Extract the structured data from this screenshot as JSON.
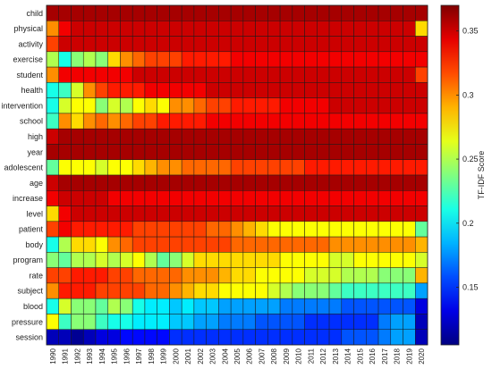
{
  "chart_data": {
    "type": "heatmap",
    "title": "",
    "xlabel": "",
    "ylabel": "",
    "colorbar_label": "TF-IDF Score",
    "colorbar_range": [
      0.105,
      0.37
    ],
    "colorbar_ticks": [
      0.15,
      0.2,
      0.25,
      0.3,
      0.35
    ],
    "colormap": "jet",
    "grid": true,
    "x": [
      "1990",
      "1991",
      "1992",
      "1993",
      "1994",
      "1995",
      "1996",
      "1997",
      "1998",
      "1999",
      "2000",
      "2001",
      "2002",
      "2003",
      "2004",
      "2005",
      "2006",
      "2007",
      "2008",
      "2009",
      "2010",
      "2011",
      "2012",
      "2013",
      "2014",
      "2015",
      "2016",
      "2017",
      "2018",
      "2019",
      "2020"
    ],
    "y": [
      "child",
      "physical",
      "activity",
      "exercise",
      "student",
      "health",
      "intervention",
      "school",
      "high",
      "year",
      "adolescent",
      "age",
      "increase",
      "level",
      "patient",
      "body",
      "program",
      "rate",
      "subject",
      "blood",
      "pressure",
      "session"
    ],
    "values": [
      [
        0.36,
        0.36,
        0.36,
        0.36,
        0.36,
        0.36,
        0.36,
        0.36,
        0.36,
        0.36,
        0.36,
        0.36,
        0.36,
        0.36,
        0.36,
        0.36,
        0.36,
        0.36,
        0.36,
        0.36,
        0.36,
        0.36,
        0.36,
        0.36,
        0.36,
        0.36,
        0.36,
        0.36,
        0.36,
        0.36,
        0.36
      ],
      [
        0.3,
        0.34,
        0.35,
        0.35,
        0.35,
        0.35,
        0.35,
        0.35,
        0.35,
        0.35,
        0.35,
        0.35,
        0.35,
        0.35,
        0.35,
        0.35,
        0.35,
        0.35,
        0.35,
        0.35,
        0.35,
        0.35,
        0.35,
        0.35,
        0.35,
        0.35,
        0.35,
        0.35,
        0.35,
        0.35,
        0.28
      ],
      [
        0.32,
        0.35,
        0.35,
        0.35,
        0.35,
        0.35,
        0.35,
        0.35,
        0.35,
        0.35,
        0.35,
        0.35,
        0.35,
        0.35,
        0.35,
        0.35,
        0.35,
        0.35,
        0.35,
        0.35,
        0.35,
        0.35,
        0.35,
        0.35,
        0.35,
        0.35,
        0.35,
        0.35,
        0.35,
        0.35,
        0.35
      ],
      [
        0.25,
        0.21,
        0.24,
        0.25,
        0.24,
        0.28,
        0.3,
        0.31,
        0.32,
        0.32,
        0.32,
        0.33,
        0.33,
        0.33,
        0.33,
        0.34,
        0.34,
        0.34,
        0.34,
        0.34,
        0.34,
        0.34,
        0.34,
        0.34,
        0.34,
        0.34,
        0.34,
        0.34,
        0.34,
        0.34,
        0.34
      ],
      [
        0.3,
        0.34,
        0.34,
        0.34,
        0.34,
        0.34,
        0.34,
        0.35,
        0.35,
        0.35,
        0.35,
        0.35,
        0.35,
        0.35,
        0.35,
        0.35,
        0.35,
        0.35,
        0.35,
        0.35,
        0.35,
        0.35,
        0.35,
        0.35,
        0.35,
        0.35,
        0.35,
        0.35,
        0.35,
        0.35,
        0.32
      ],
      [
        0.21,
        0.22,
        0.26,
        0.3,
        0.32,
        0.33,
        0.33,
        0.33,
        0.34,
        0.34,
        0.34,
        0.34,
        0.34,
        0.35,
        0.35,
        0.35,
        0.35,
        0.35,
        0.35,
        0.35,
        0.35,
        0.35,
        0.35,
        0.35,
        0.35,
        0.35,
        0.35,
        0.35,
        0.35,
        0.35,
        0.35
      ],
      [
        0.21,
        0.26,
        0.27,
        0.27,
        0.24,
        0.26,
        0.25,
        0.27,
        0.28,
        0.27,
        0.3,
        0.3,
        0.31,
        0.32,
        0.32,
        0.33,
        0.33,
        0.33,
        0.33,
        0.34,
        0.34,
        0.34,
        0.34,
        0.35,
        0.35,
        0.35,
        0.35,
        0.35,
        0.35,
        0.35,
        0.35
      ],
      [
        0.22,
        0.3,
        0.28,
        0.3,
        0.31,
        0.3,
        0.31,
        0.32,
        0.32,
        0.33,
        0.33,
        0.33,
        0.33,
        0.34,
        0.34,
        0.34,
        0.34,
        0.34,
        0.34,
        0.34,
        0.34,
        0.34,
        0.34,
        0.34,
        0.34,
        0.34,
        0.34,
        0.34,
        0.34,
        0.34,
        0.34
      ],
      [
        0.35,
        0.36,
        0.36,
        0.36,
        0.36,
        0.36,
        0.36,
        0.36,
        0.36,
        0.36,
        0.36,
        0.36,
        0.36,
        0.36,
        0.36,
        0.36,
        0.36,
        0.36,
        0.36,
        0.36,
        0.36,
        0.36,
        0.36,
        0.36,
        0.36,
        0.36,
        0.36,
        0.36,
        0.36,
        0.36,
        0.36
      ],
      [
        0.36,
        0.36,
        0.36,
        0.36,
        0.36,
        0.36,
        0.36,
        0.36,
        0.36,
        0.36,
        0.36,
        0.36,
        0.36,
        0.36,
        0.36,
        0.36,
        0.36,
        0.36,
        0.36,
        0.36,
        0.36,
        0.36,
        0.36,
        0.36,
        0.36,
        0.36,
        0.36,
        0.36,
        0.36,
        0.36,
        0.36
      ],
      [
        0.23,
        0.27,
        0.27,
        0.27,
        0.26,
        0.27,
        0.27,
        0.28,
        0.29,
        0.3,
        0.3,
        0.31,
        0.31,
        0.31,
        0.31,
        0.32,
        0.32,
        0.32,
        0.32,
        0.32,
        0.32,
        0.33,
        0.33,
        0.33,
        0.33,
        0.33,
        0.33,
        0.33,
        0.33,
        0.33,
        0.33
      ],
      [
        0.35,
        0.36,
        0.36,
        0.36,
        0.36,
        0.36,
        0.36,
        0.36,
        0.36,
        0.36,
        0.36,
        0.36,
        0.36,
        0.36,
        0.36,
        0.36,
        0.36,
        0.36,
        0.36,
        0.36,
        0.36,
        0.36,
        0.36,
        0.36,
        0.36,
        0.36,
        0.36,
        0.36,
        0.36,
        0.36,
        0.36
      ],
      [
        0.34,
        0.35,
        0.35,
        0.35,
        0.35,
        0.34,
        0.34,
        0.34,
        0.34,
        0.34,
        0.34,
        0.34,
        0.34,
        0.34,
        0.34,
        0.34,
        0.34,
        0.34,
        0.34,
        0.34,
        0.34,
        0.34,
        0.34,
        0.34,
        0.34,
        0.34,
        0.34,
        0.34,
        0.34,
        0.34,
        0.34
      ],
      [
        0.28,
        0.34,
        0.35,
        0.35,
        0.35,
        0.35,
        0.35,
        0.35,
        0.35,
        0.35,
        0.35,
        0.35,
        0.35,
        0.35,
        0.35,
        0.35,
        0.35,
        0.35,
        0.35,
        0.35,
        0.35,
        0.35,
        0.35,
        0.35,
        0.35,
        0.35,
        0.35,
        0.35,
        0.35,
        0.35,
        0.35
      ],
      [
        0.32,
        0.34,
        0.33,
        0.33,
        0.33,
        0.33,
        0.33,
        0.32,
        0.32,
        0.32,
        0.32,
        0.32,
        0.32,
        0.31,
        0.31,
        0.3,
        0.29,
        0.28,
        0.27,
        0.27,
        0.27,
        0.27,
        0.27,
        0.27,
        0.27,
        0.27,
        0.27,
        0.27,
        0.27,
        0.27,
        0.23
      ],
      [
        0.21,
        0.25,
        0.28,
        0.28,
        0.27,
        0.3,
        0.31,
        0.32,
        0.32,
        0.32,
        0.32,
        0.32,
        0.32,
        0.32,
        0.32,
        0.31,
        0.31,
        0.31,
        0.31,
        0.31,
        0.31,
        0.31,
        0.31,
        0.3,
        0.3,
        0.3,
        0.3,
        0.3,
        0.3,
        0.3,
        0.29
      ],
      [
        0.24,
        0.23,
        0.25,
        0.25,
        0.26,
        0.25,
        0.26,
        0.27,
        0.25,
        0.23,
        0.24,
        0.26,
        0.28,
        0.28,
        0.28,
        0.28,
        0.28,
        0.28,
        0.28,
        0.27,
        0.27,
        0.27,
        0.27,
        0.26,
        0.26,
        0.27,
        0.27,
        0.27,
        0.27,
        0.27,
        0.26
      ],
      [
        0.32,
        0.32,
        0.33,
        0.33,
        0.33,
        0.32,
        0.32,
        0.31,
        0.31,
        0.31,
        0.31,
        0.3,
        0.3,
        0.3,
        0.29,
        0.28,
        0.28,
        0.27,
        0.27,
        0.27,
        0.27,
        0.26,
        0.26,
        0.26,
        0.25,
        0.25,
        0.25,
        0.24,
        0.24,
        0.24,
        0.29
      ],
      [
        0.3,
        0.33,
        0.33,
        0.33,
        0.32,
        0.32,
        0.32,
        0.32,
        0.31,
        0.31,
        0.3,
        0.29,
        0.28,
        0.28,
        0.27,
        0.27,
        0.27,
        0.27,
        0.26,
        0.25,
        0.24,
        0.24,
        0.24,
        0.23,
        0.22,
        0.22,
        0.22,
        0.22,
        0.22,
        0.22,
        0.18
      ],
      [
        0.21,
        0.26,
        0.24,
        0.24,
        0.23,
        0.25,
        0.24,
        0.21,
        0.2,
        0.2,
        0.19,
        0.2,
        0.19,
        0.19,
        0.18,
        0.18,
        0.18,
        0.18,
        0.18,
        0.17,
        0.17,
        0.17,
        0.17,
        0.17,
        0.16,
        0.16,
        0.16,
        0.16,
        0.16,
        0.16,
        0.13
      ],
      [
        0.27,
        0.22,
        0.24,
        0.24,
        0.22,
        0.21,
        0.21,
        0.2,
        0.2,
        0.2,
        0.19,
        0.19,
        0.18,
        0.18,
        0.17,
        0.17,
        0.17,
        0.16,
        0.16,
        0.16,
        0.16,
        0.15,
        0.15,
        0.15,
        0.15,
        0.15,
        0.15,
        0.17,
        0.18,
        0.18,
        0.12
      ],
      [
        0.12,
        0.12,
        0.11,
        0.12,
        0.13,
        0.13,
        0.14,
        0.14,
        0.14,
        0.14,
        0.15,
        0.15,
        0.15,
        0.15,
        0.15,
        0.15,
        0.15,
        0.15,
        0.15,
        0.15,
        0.15,
        0.15,
        0.15,
        0.15,
        0.16,
        0.16,
        0.16,
        0.17,
        0.18,
        0.18,
        0.12
      ]
    ]
  }
}
